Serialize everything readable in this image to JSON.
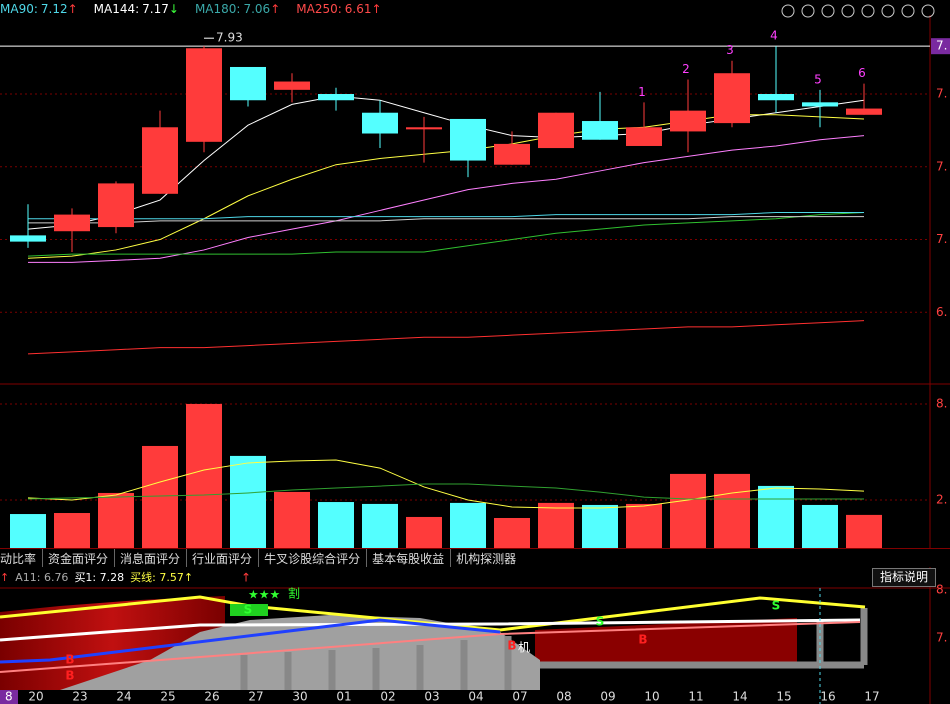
{
  "header": [
    {
      "label": "MA90:",
      "value": 7.12,
      "arrow": "↑",
      "color": "#4fd8e8",
      "arrow_color": "#ff3b3b"
    },
    {
      "label": "MA144:",
      "value": 7.17,
      "arrow": "↓",
      "color": "#ffffff",
      "arrow_color": "#3cff3c"
    },
    {
      "label": "MA180:",
      "value": 7.06,
      "arrow": "↑",
      "color": "#3aa8a8",
      "arrow_color": "#ff3b3b"
    },
    {
      "label": "MA250:",
      "value": 6.61,
      "arrow": "↑",
      "color": "#ff4a4a",
      "arrow_color": "#ff3b3b"
    }
  ],
  "chart_data": {
    "type": "candlestick",
    "categories": [
      "20",
      "23",
      "24",
      "25",
      "26",
      "27",
      "30",
      "01",
      "02",
      "03",
      "04",
      "07",
      "08",
      "09",
      "10",
      "11",
      "14",
      "15",
      "16",
      "17"
    ],
    "open": [
      7.02,
      7.04,
      7.06,
      7.22,
      7.47,
      7.83,
      7.72,
      7.7,
      7.61,
      7.53,
      7.58,
      7.36,
      7.44,
      7.57,
      7.45,
      7.52,
      7.56,
      7.7,
      7.66,
      7.6
    ],
    "high": [
      7.17,
      7.15,
      7.28,
      7.62,
      7.93,
      7.83,
      7.8,
      7.73,
      7.67,
      7.59,
      7.58,
      7.52,
      7.61,
      7.71,
      7.66,
      7.77,
      7.86,
      7.93,
      7.72,
      7.75
    ],
    "low": [
      6.96,
      6.94,
      7.03,
      7.22,
      7.42,
      7.64,
      7.66,
      7.62,
      7.44,
      7.37,
      7.3,
      7.36,
      7.44,
      7.48,
      7.45,
      7.42,
      7.54,
      7.61,
      7.54,
      7.6
    ],
    "close": [
      6.99,
      7.12,
      7.27,
      7.54,
      7.92,
      7.67,
      7.76,
      7.67,
      7.51,
      7.54,
      7.38,
      7.46,
      7.61,
      7.48,
      7.54,
      7.62,
      7.8,
      7.67,
      7.64,
      7.63
    ],
    "up_color": "#ff3b3b",
    "down_color": "#54ffff",
    "ylim": [
      6.31,
      8.08
    ],
    "yticks": [
      {
        "value": 7.7,
        "label": "7."
      },
      {
        "value": 7.35,
        "label": "7."
      },
      {
        "value": 7.0,
        "label": "7."
      },
      {
        "value": 6.65,
        "label": "6."
      }
    ],
    "ref_line": {
      "value": 7.93,
      "label": "7."
    },
    "max_label": "7.93",
    "peak_labels": [
      "1",
      "2",
      "3",
      "4",
      "5",
      "6"
    ],
    "grid": true,
    "lines": [
      {
        "color": "#ffffff",
        "values": [
          7.05,
          7.07,
          7.12,
          7.19,
          7.38,
          7.55,
          7.65,
          7.69,
          7.67,
          7.61,
          7.55,
          7.5,
          7.49,
          7.5,
          7.51,
          7.55,
          7.58,
          7.61,
          7.64,
          7.67
        ]
      },
      {
        "color": "#ffff44",
        "values": [
          6.91,
          6.92,
          6.95,
          7.0,
          7.1,
          7.21,
          7.29,
          7.36,
          7.39,
          7.41,
          7.43,
          7.46,
          7.5,
          7.53,
          7.54,
          7.57,
          7.6,
          7.6,
          7.59,
          7.58
        ]
      },
      {
        "color": "#ff80ff",
        "values": [
          6.89,
          6.89,
          6.9,
          6.91,
          6.95,
          7.01,
          7.05,
          7.09,
          7.14,
          7.19,
          7.24,
          7.27,
          7.29,
          7.33,
          7.37,
          7.4,
          7.43,
          7.45,
          7.48,
          7.5
        ]
      },
      {
        "color": "#30c030",
        "values": [
          6.92,
          6.93,
          6.93,
          6.93,
          6.93,
          6.93,
          6.93,
          6.94,
          6.94,
          6.94,
          6.97,
          7.0,
          7.03,
          7.05,
          7.07,
          7.08,
          7.09,
          7.1,
          7.12,
          7.13
        ]
      },
      {
        "color": "#4fd8e8",
        "values": [
          7.1,
          7.1,
          7.1,
          7.1,
          7.1,
          7.11,
          7.11,
          7.11,
          7.11,
          7.11,
          7.11,
          7.11,
          7.12,
          7.12,
          7.12,
          7.12,
          7.12,
          7.13,
          7.13,
          7.13
        ]
      },
      {
        "color": "#d0d0d0",
        "values": [
          7.08,
          7.08,
          7.08,
          7.09,
          7.09,
          7.09,
          7.09,
          7.09,
          7.09,
          7.1,
          7.1,
          7.1,
          7.1,
          7.1,
          7.1,
          7.1,
          7.11,
          7.11,
          7.11,
          7.11
        ]
      },
      {
        "color": "#ff3030",
        "values": [
          6.45,
          6.46,
          6.47,
          6.48,
          6.48,
          6.49,
          6.5,
          6.51,
          6.52,
          6.53,
          6.53,
          6.54,
          6.55,
          6.56,
          6.57,
          6.58,
          6.58,
          6.59,
          6.6,
          6.61
        ]
      }
    ]
  },
  "volume": {
    "type": "bar",
    "values": [
      1.98,
      2.04,
      3.21,
      5.95,
      8.4,
      5.37,
      3.27,
      2.68,
      2.57,
      1.81,
      2.63,
      1.75,
      2.63,
      2.51,
      2.57,
      4.32,
      4.32,
      3.62,
      2.51,
      1.93
    ],
    "ylim": [
      0,
      9.33
    ],
    "yticks": [
      {
        "value": 8.4,
        "label": "8."
      },
      {
        "value": 2.8,
        "label": "2."
      }
    ],
    "lines": [
      {
        "color": "#ffff44",
        "values": [
          2.92,
          2.8,
          3.09,
          3.85,
          4.55,
          4.96,
          5.07,
          5.13,
          4.66,
          3.56,
          2.8,
          2.39,
          2.33,
          2.33,
          2.45,
          2.8,
          3.21,
          3.5,
          3.44,
          3.32
        ]
      },
      {
        "color": "#30a030",
        "values": [
          2.86,
          2.92,
          2.97,
          3.03,
          3.09,
          3.21,
          3.38,
          3.5,
          3.61,
          3.73,
          3.73,
          3.61,
          3.5,
          3.26,
          2.97,
          2.86,
          2.86,
          2.86,
          2.86,
          2.86
        ]
      }
    ]
  },
  "tabs": [
    "动比率",
    "资金面评分",
    "消息面评分",
    "行业面评分",
    "牛叉诊股综合评分",
    "基本每股收益",
    "机构探测器"
  ],
  "indicator": {
    "lead": "↑",
    "items": [
      "A11: 6.76",
      "买1: 7.28",
      "买线: 7.57↑"
    ],
    "button": "指标说明",
    "axis_labels": [
      "8.",
      "7."
    ],
    "signals": {
      "buy": [
        "B",
        "B",
        "B"
      ],
      "sell": [
        "S",
        "S",
        "S"
      ],
      "stars": "★★★",
      "cut": "割",
      "ji": "机"
    },
    "cursor_label": "8"
  }
}
